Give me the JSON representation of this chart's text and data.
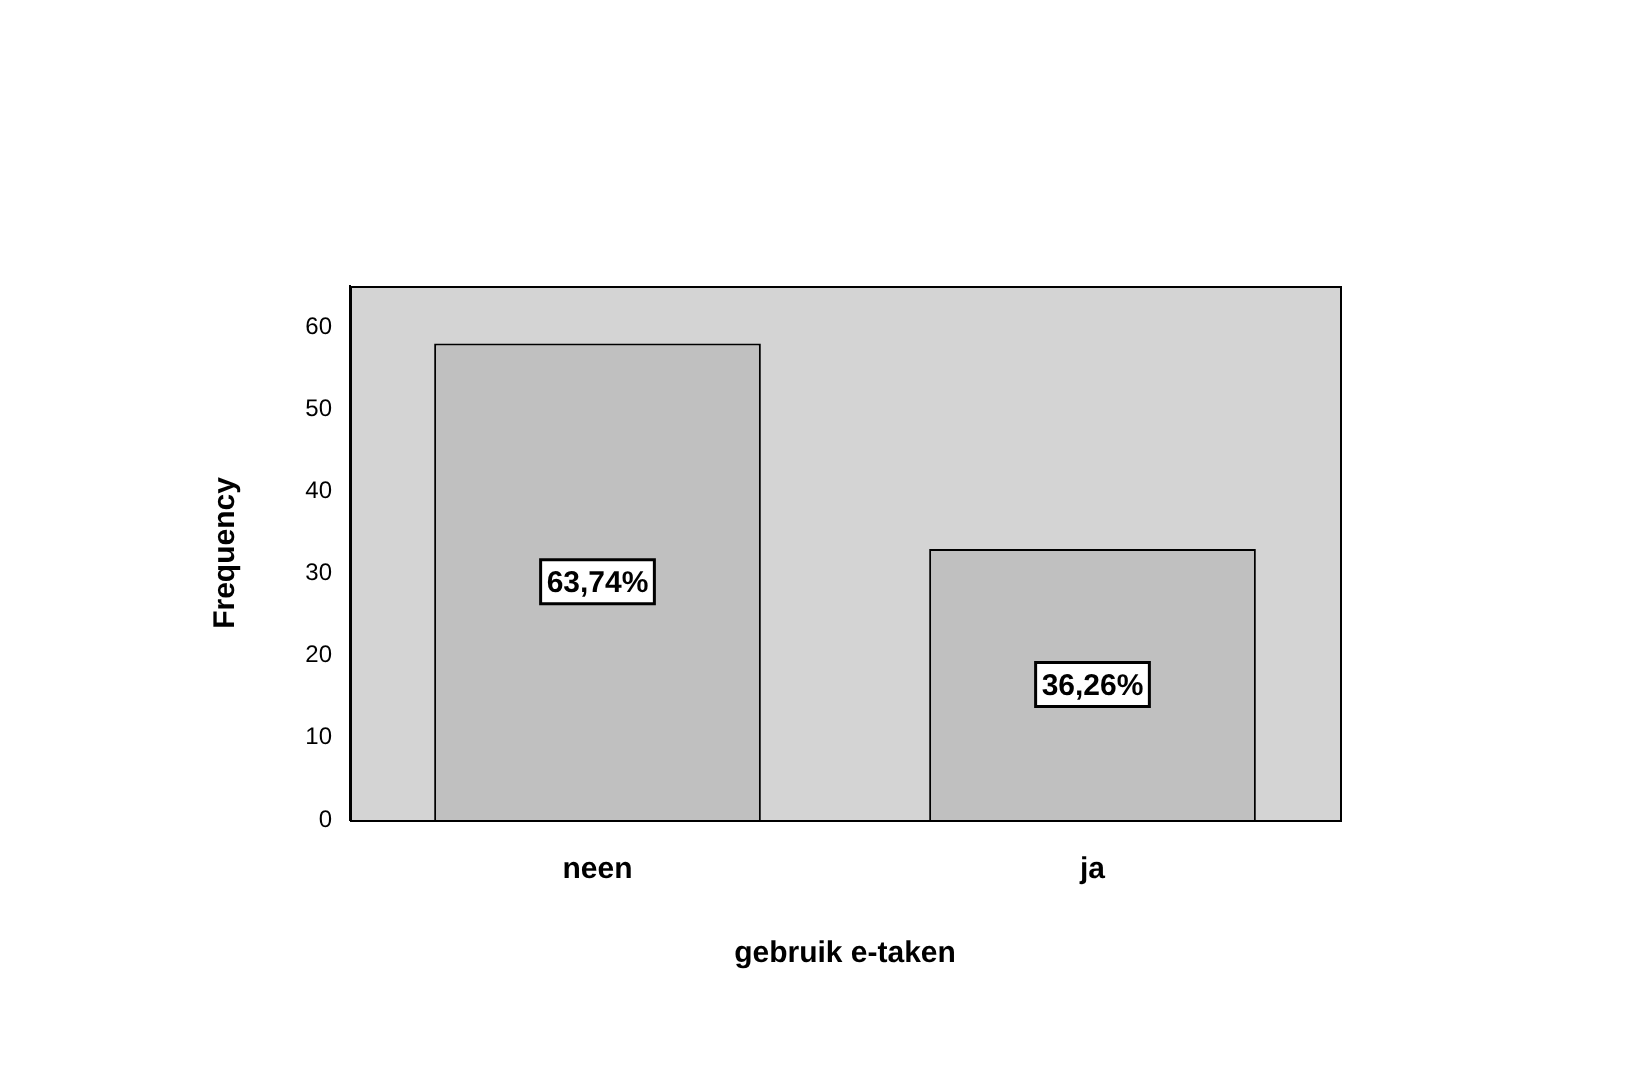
{
  "chart_data": {
    "type": "bar",
    "xlabel": "gebruik e-taken",
    "ylabel": "Frequency",
    "categories": [
      "neen",
      "ja"
    ],
    "values": [
      58,
      33
    ],
    "color": "#c0c0c0",
    "annotations": [
      "63,74%",
      "36,26%"
    ],
    "ylim": [
      0,
      65
    ],
    "yticks": [
      0,
      10,
      20,
      30,
      40,
      50,
      60
    ],
    "grid": false,
    "legend": false
  }
}
